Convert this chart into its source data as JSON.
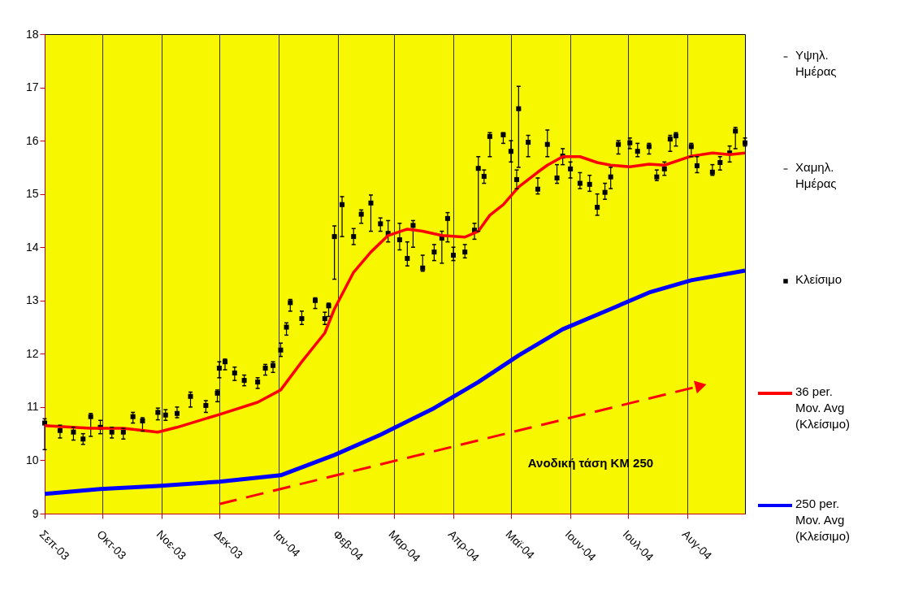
{
  "chart_data": {
    "type": "scatter",
    "x": [
      "2003-09-01",
      "2003-09-09",
      "2003-09-16",
      "2003-09-21",
      "2003-09-25",
      "2003-09-30",
      "2003-10-06",
      "2003-10-12",
      "2003-10-17",
      "2003-10-22",
      "2003-10-30",
      "2003-11-03",
      "2003-11-09",
      "2003-11-16",
      "2003-11-24",
      "2003-11-30",
      "2003-12-01",
      "2003-12-04",
      "2003-12-09",
      "2003-12-14",
      "2003-12-21",
      "2003-12-25",
      "2003-12-29",
      "2004-01-02",
      "2004-01-05",
      "2004-01-07",
      "2004-01-13",
      "2004-01-20",
      "2004-01-25",
      "2004-01-27",
      "2004-01-30",
      "2004-02-03",
      "2004-02-09",
      "2004-02-13",
      "2004-02-18",
      "2004-02-23",
      "2004-02-27",
      "2004-03-04",
      "2004-03-08",
      "2004-03-11",
      "2004-03-16",
      "2004-03-22",
      "2004-03-26",
      "2004-03-29",
      "2004-04-01",
      "2004-04-07",
      "2004-04-12",
      "2004-04-14",
      "2004-04-17",
      "2004-04-20",
      "2004-04-27",
      "2004-05-01",
      "2004-05-04",
      "2004-05-05",
      "2004-05-10",
      "2004-05-15",
      "2004-05-20",
      "2004-05-25",
      "2004-05-28",
      "2004-06-01",
      "2004-06-06",
      "2004-06-11",
      "2004-06-15",
      "2004-06-19",
      "2004-06-22",
      "2004-06-26",
      "2004-07-02",
      "2004-07-06",
      "2004-07-12",
      "2004-07-16",
      "2004-07-20",
      "2004-07-23",
      "2004-07-26",
      "2004-08-03",
      "2004-08-06",
      "2004-08-14",
      "2004-08-18",
      "2004-08-23",
      "2004-08-26",
      "2004-08-31"
    ],
    "series": [
      {
        "name": "Υψηλ. Ημέρας",
        "color": "#000000",
        "values": [
          10.78,
          10.66,
          10.62,
          10.5,
          10.88,
          10.75,
          10.62,
          10.6,
          10.9,
          10.8,
          10.98,
          10.95,
          11.0,
          11.28,
          11.12,
          11.32,
          11.85,
          11.9,
          11.75,
          11.6,
          11.55,
          11.8,
          11.85,
          12.2,
          12.58,
          13.02,
          12.8,
          13.05,
          12.78,
          12.95,
          14.4,
          14.95,
          14.35,
          14.7,
          14.98,
          14.55,
          14.5,
          14.45,
          14.1,
          14.5,
          13.85,
          14.05,
          14.3,
          14.65,
          14.0,
          14.05,
          14.45,
          15.7,
          15.45,
          16.15,
          16.15,
          16.0,
          15.45,
          17.02,
          16.1,
          15.3,
          16.2,
          15.55,
          15.85,
          15.6,
          15.4,
          15.35,
          15.0,
          15.2,
          15.5,
          16.0,
          16.05,
          15.95,
          15.95,
          15.45,
          15.6,
          16.1,
          16.15,
          15.95,
          15.7,
          15.55,
          15.7,
          15.9,
          16.25,
          16.05
        ]
      },
      {
        "name": "Χαμηλ. Ημέρας",
        "color": "#000000",
        "values": [
          10.2,
          10.42,
          10.38,
          10.3,
          10.45,
          10.5,
          10.42,
          10.4,
          10.7,
          10.55,
          10.76,
          10.75,
          10.8,
          11.0,
          10.9,
          11.1,
          11.55,
          11.7,
          11.5,
          11.4,
          11.35,
          11.6,
          11.65,
          11.95,
          12.35,
          12.8,
          12.55,
          12.85,
          12.55,
          12.7,
          13.4,
          14.2,
          14.05,
          14.45,
          14.3,
          14.3,
          14.1,
          13.95,
          13.65,
          14.0,
          13.55,
          13.75,
          13.7,
          14.1,
          13.75,
          13.8,
          14.15,
          14.3,
          15.2,
          15.7,
          15.95,
          15.6,
          15.1,
          15.5,
          15.7,
          15.0,
          15.7,
          15.2,
          15.55,
          15.3,
          15.1,
          15.05,
          14.6,
          14.9,
          15.1,
          15.75,
          15.85,
          15.7,
          15.75,
          15.25,
          15.35,
          15.8,
          15.9,
          15.7,
          15.4,
          15.35,
          15.45,
          15.6,
          15.85,
          15.9
        ]
      },
      {
        "name": "Κλείσιμο",
        "marker": "square",
        "errors": [
          [
            10.2,
            10.78
          ],
          [
            10.42,
            10.66
          ],
          [
            10.38,
            10.62
          ],
          [
            10.3,
            10.5
          ],
          [
            10.45,
            10.88
          ],
          [
            10.5,
            10.75
          ],
          [
            10.42,
            10.62
          ],
          [
            10.4,
            10.6
          ],
          [
            10.7,
            10.9
          ],
          [
            10.55,
            10.8
          ],
          [
            10.76,
            10.98
          ],
          [
            10.75,
            10.95
          ],
          [
            10.8,
            11.0
          ],
          [
            11.0,
            11.28
          ],
          [
            10.9,
            11.12
          ],
          [
            11.1,
            11.32
          ],
          [
            11.55,
            11.85
          ],
          [
            11.7,
            11.9
          ],
          [
            11.5,
            11.75
          ],
          [
            11.4,
            11.6
          ],
          [
            11.35,
            11.55
          ],
          [
            11.6,
            11.8
          ],
          [
            11.65,
            11.85
          ],
          [
            11.95,
            12.2
          ],
          [
            12.35,
            12.58
          ],
          [
            12.8,
            13.02
          ],
          [
            12.55,
            12.8
          ],
          [
            12.85,
            13.05
          ],
          [
            12.55,
            12.78
          ],
          [
            12.7,
            12.95
          ],
          [
            13.4,
            14.4
          ],
          [
            14.2,
            14.95
          ],
          [
            14.05,
            14.35
          ],
          [
            14.45,
            14.7
          ],
          [
            14.3,
            14.98
          ],
          [
            14.3,
            14.55
          ],
          [
            14.1,
            14.5
          ],
          [
            13.95,
            14.45
          ],
          [
            13.65,
            14.1
          ],
          [
            14.0,
            14.5
          ],
          [
            13.55,
            13.85
          ],
          [
            13.75,
            14.05
          ],
          [
            13.7,
            14.3
          ],
          [
            14.1,
            14.65
          ],
          [
            13.75,
            14.0
          ],
          [
            13.8,
            14.05
          ],
          [
            14.15,
            14.45
          ],
          [
            14.3,
            15.7
          ],
          [
            15.2,
            15.45
          ],
          [
            15.7,
            16.15
          ],
          [
            15.95,
            16.15
          ],
          [
            15.6,
            16.0
          ],
          [
            15.1,
            15.45
          ],
          [
            15.5,
            17.02
          ],
          [
            15.7,
            16.1
          ],
          [
            15.0,
            15.3
          ],
          [
            15.7,
            16.2
          ],
          [
            15.2,
            15.55
          ],
          [
            15.55,
            15.85
          ],
          [
            15.3,
            15.6
          ],
          [
            15.1,
            15.4
          ],
          [
            15.05,
            15.35
          ],
          [
            14.6,
            15.0
          ],
          [
            14.9,
            15.2
          ],
          [
            15.1,
            15.5
          ],
          [
            15.75,
            16.0
          ],
          [
            15.85,
            16.05
          ],
          [
            15.7,
            15.95
          ],
          [
            15.75,
            15.95
          ],
          [
            15.25,
            15.45
          ],
          [
            15.35,
            15.6
          ],
          [
            15.8,
            16.1
          ],
          [
            15.9,
            16.15
          ],
          [
            15.7,
            15.95
          ],
          [
            15.4,
            15.7
          ],
          [
            15.35,
            15.55
          ],
          [
            15.45,
            15.7
          ],
          [
            15.6,
            15.9
          ],
          [
            15.85,
            16.25
          ],
          [
            15.9,
            16.05
          ]
        ],
        "color": "#000000",
        "values": [
          10.7,
          10.56,
          10.53,
          10.4,
          10.82,
          10.62,
          10.53,
          10.53,
          10.82,
          10.74,
          10.9,
          10.85,
          10.88,
          11.2,
          11.03,
          11.26,
          11.73,
          11.85,
          11.64,
          11.5,
          11.47,
          11.73,
          11.78,
          12.07,
          12.5,
          12.96,
          12.66,
          13.0,
          12.66,
          12.9,
          14.2,
          14.8,
          14.2,
          14.62,
          14.83,
          14.44,
          14.26,
          14.14,
          13.79,
          14.41,
          13.61,
          13.91,
          14.17,
          14.54,
          13.85,
          13.91,
          14.32,
          15.48,
          15.33,
          16.08,
          16.11,
          15.8,
          15.27,
          16.6,
          15.97,
          15.09,
          15.93,
          15.3,
          15.71,
          15.47,
          15.2,
          15.18,
          14.75,
          15.03,
          15.32,
          15.93,
          15.96,
          15.8,
          15.89,
          15.32,
          15.47,
          16.03,
          16.09,
          15.89,
          15.53,
          15.41,
          15.59,
          15.77,
          16.18,
          15.96
        ]
      },
      {
        "name": "36 per. Mov. Avg (Κλείσιμο)",
        "type": "line",
        "color": "#ff0000",
        "x": [
          "2003-09-01",
          "2003-09-25",
          "2003-10-12",
          "2003-10-30",
          "2003-11-09",
          "2003-12-01",
          "2003-12-21",
          "2004-01-02",
          "2004-01-13",
          "2004-01-25",
          "2004-01-30",
          "2004-02-09",
          "2004-02-18",
          "2004-02-27",
          "2004-03-08",
          "2004-03-16",
          "2004-03-26",
          "2004-04-07",
          "2004-04-14",
          "2004-04-20",
          "2004-04-27",
          "2004-05-05",
          "2004-05-15",
          "2004-05-20",
          "2004-05-28",
          "2004-06-06",
          "2004-06-15",
          "2004-06-22",
          "2004-07-02",
          "2004-07-12",
          "2004-07-20",
          "2004-08-03",
          "2004-08-14",
          "2004-08-23",
          "2004-08-31"
        ],
        "values": [
          10.65,
          10.6,
          10.6,
          10.53,
          10.62,
          10.86,
          11.09,
          11.32,
          11.85,
          12.39,
          12.84,
          13.53,
          13.91,
          14.22,
          14.34,
          14.3,
          14.22,
          14.19,
          14.3,
          14.6,
          14.8,
          15.13,
          15.41,
          15.54,
          15.7,
          15.7,
          15.59,
          15.54,
          15.51,
          15.56,
          15.54,
          15.71,
          15.77,
          15.74,
          15.77
        ]
      },
      {
        "name": "250 per. Mov. Avg (Κλείσιμο)",
        "type": "line",
        "color": "#0000ff",
        "x": [
          "2003-09-01",
          "2003-09-30",
          "2003-10-30",
          "2003-12-01",
          "2004-01-02",
          "2004-01-30",
          "2004-02-23",
          "2004-03-22",
          "2004-04-14",
          "2004-05-05",
          "2004-05-28",
          "2004-06-22",
          "2004-07-12",
          "2004-08-03",
          "2004-08-31"
        ],
        "values": [
          9.37,
          9.46,
          9.52,
          9.6,
          9.72,
          10.1,
          10.48,
          10.98,
          11.47,
          11.97,
          12.46,
          12.84,
          13.15,
          13.38,
          13.56
        ]
      },
      {
        "type": "line",
        "line_style": "dashed",
        "color": "#ff0000",
        "x": [
          "2003-12-01",
          "2004-08-08"
        ],
        "values": [
          9.18,
          11.4
        ]
      }
    ],
    "annotations": [
      "Ανοδική τάση ΚΜ 250"
    ],
    "xlim": [
      "2003-09-01",
      "2004-08-31"
    ],
    "xticks": [
      {
        "value": "2003-09-01",
        "label": "Σεπ-03"
      },
      {
        "value": "2003-10-01",
        "label": "Οκτ-03"
      },
      {
        "value": "2003-11-01",
        "label": "Νοε-03"
      },
      {
        "value": "2003-12-01",
        "label": "Δεκ-03"
      },
      {
        "value": "2004-01-01",
        "label": "Ιαν-04"
      },
      {
        "value": "2004-02-01",
        "label": "Φεβ-04"
      },
      {
        "value": "2004-03-01",
        "label": "Μαρ-04"
      },
      {
        "value": "2004-04-01",
        "label": "Απρ-04"
      },
      {
        "value": "2004-05-01",
        "label": "Μαϊ-04"
      },
      {
        "value": "2004-06-01",
        "label": "Ιουν-04"
      },
      {
        "value": "2004-07-01",
        "label": "Ιουλ-04"
      },
      {
        "value": "2004-08-01",
        "label": "Αυγ-04"
      }
    ],
    "ylim": [
      9,
      18
    ],
    "yticks": [
      9,
      10,
      11,
      12,
      13,
      14,
      15,
      16,
      17,
      18
    ],
    "grid": "x",
    "legend": "right"
  }
}
